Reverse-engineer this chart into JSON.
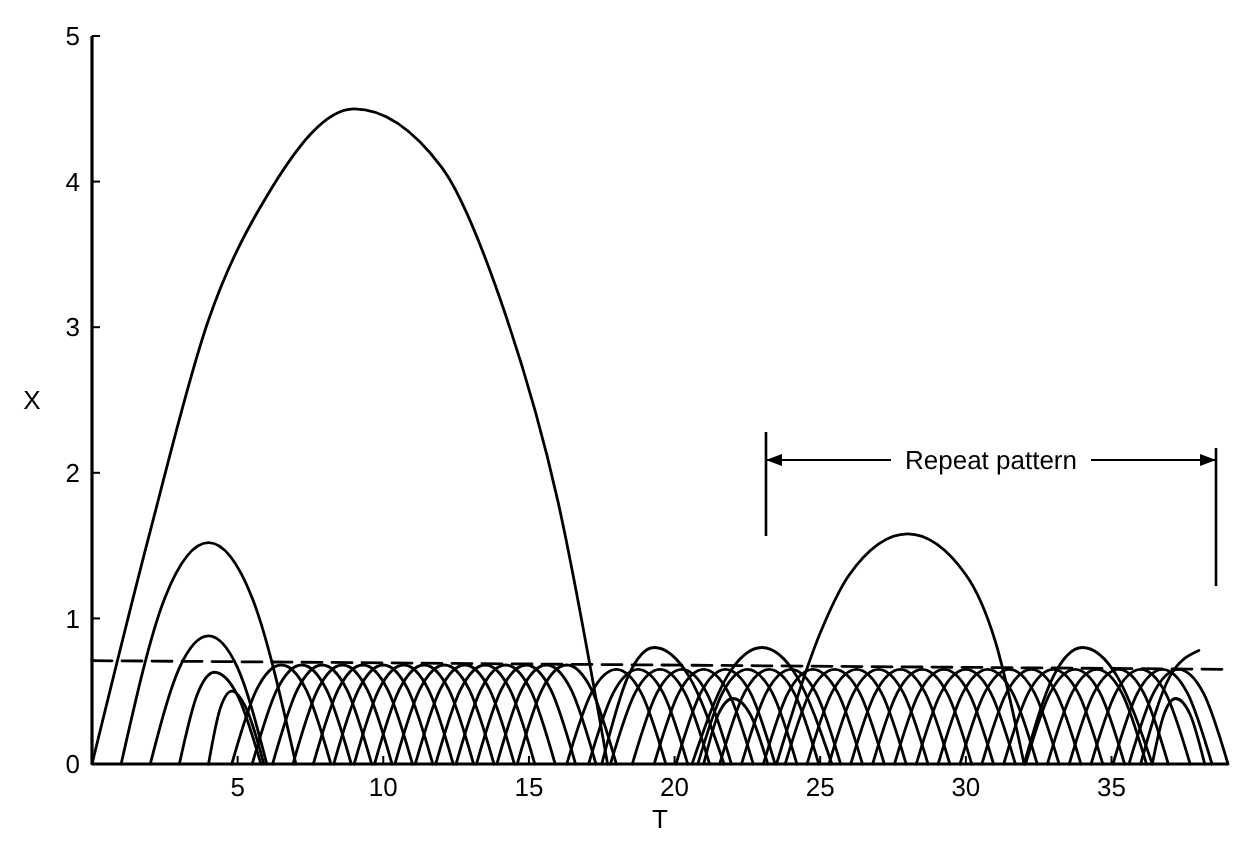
{
  "chart_data": {
    "type": "line",
    "xlabel": "T",
    "ylabel": "X",
    "xlim": [
      0,
      39
    ],
    "ylim": [
      0,
      5
    ],
    "xticks": [
      5,
      10,
      15,
      20,
      25,
      30,
      35
    ],
    "yticks": [
      0,
      1,
      2,
      3,
      4,
      5
    ],
    "grid": false,
    "marker": "none",
    "line_style": "solid",
    "annotations": [
      "Repeat pattern"
    ],
    "series": [
      {
        "color": "#000000",
        "x": [
          0,
          2,
          4,
          6,
          9,
          12,
          14,
          16,
          17.7
        ],
        "values": [
          0,
          1.6,
          3.05,
          3.9,
          4.5,
          4.1,
          3.2,
          1.8,
          0
        ]
      },
      {
        "color": "#000000",
        "x": [
          1,
          2.5,
          4,
          5.5,
          7
        ],
        "values": [
          0,
          1.14,
          1.52,
          1.14,
          0
        ]
      },
      {
        "color": "#000000",
        "x": [
          2,
          3,
          4,
          5,
          6
        ],
        "values": [
          0,
          0.66,
          0.88,
          0.66,
          0
        ]
      },
      {
        "color": "#000000",
        "x": [
          3,
          3.6,
          4.2,
          5,
          5.8
        ],
        "values": [
          0,
          0.47,
          0.63,
          0.47,
          0
        ]
      },
      {
        "color": "#000000",
        "x": [
          4,
          4.4,
          4.8,
          5.3,
          5.9
        ],
        "values": [
          0,
          0.38,
          0.5,
          0.38,
          0
        ]
      },
      {
        "color": "#000000",
        "x": [
          4.8,
          5.65,
          6.5,
          7.35,
          8.2
        ],
        "values": [
          0,
          0.51,
          0.68,
          0.51,
          0
        ]
      },
      {
        "color": "#000000",
        "x": [
          5.5,
          6.35,
          7.2,
          8.05,
          8.9
        ],
        "values": [
          0,
          0.51,
          0.68,
          0.51,
          0
        ]
      },
      {
        "color": "#000000",
        "x": [
          6.2,
          7.05,
          7.9,
          8.75,
          9.6
        ],
        "values": [
          0,
          0.51,
          0.68,
          0.51,
          0
        ]
      },
      {
        "color": "#000000",
        "x": [
          6.9,
          7.75,
          8.6,
          9.45,
          10.3
        ],
        "values": [
          0,
          0.51,
          0.68,
          0.51,
          0
        ]
      },
      {
        "color": "#000000",
        "x": [
          7.6,
          8.45,
          9.3,
          10.15,
          11
        ],
        "values": [
          0,
          0.51,
          0.68,
          0.51,
          0
        ]
      },
      {
        "color": "#000000",
        "x": [
          8.3,
          9.15,
          10,
          10.85,
          11.7
        ],
        "values": [
          0,
          0.51,
          0.68,
          0.51,
          0
        ]
      },
      {
        "color": "#000000",
        "x": [
          9,
          9.85,
          10.7,
          11.55,
          12.4
        ],
        "values": [
          0,
          0.51,
          0.68,
          0.51,
          0
        ]
      },
      {
        "color": "#000000",
        "x": [
          9.7,
          10.55,
          11.4,
          12.25,
          13.1
        ],
        "values": [
          0,
          0.51,
          0.68,
          0.51,
          0
        ]
      },
      {
        "color": "#000000",
        "x": [
          10.4,
          11.25,
          12.1,
          12.95,
          13.8
        ],
        "values": [
          0,
          0.51,
          0.68,
          0.51,
          0
        ]
      },
      {
        "color": "#000000",
        "x": [
          11.1,
          11.95,
          12.8,
          13.65,
          14.5
        ],
        "values": [
          0,
          0.51,
          0.68,
          0.51,
          0
        ]
      },
      {
        "color": "#000000",
        "x": [
          11.8,
          12.65,
          13.5,
          14.35,
          15.2
        ],
        "values": [
          0,
          0.51,
          0.68,
          0.51,
          0
        ]
      },
      {
        "color": "#000000",
        "x": [
          12.5,
          13.35,
          14.2,
          15.05,
          15.9
        ],
        "values": [
          0,
          0.51,
          0.68,
          0.51,
          0
        ]
      },
      {
        "color": "#000000",
        "x": [
          13.2,
          14.05,
          14.9,
          15.75,
          16.6
        ],
        "values": [
          0,
          0.51,
          0.68,
          0.51,
          0
        ]
      },
      {
        "color": "#000000",
        "x": [
          13.9,
          14.75,
          15.6,
          16.45,
          17.3
        ],
        "values": [
          0,
          0.51,
          0.68,
          0.51,
          0
        ]
      },
      {
        "color": "#000000",
        "x": [
          14.6,
          15.45,
          16.3,
          17.15,
          18
        ],
        "values": [
          0,
          0.51,
          0.68,
          0.51,
          0
        ]
      },
      {
        "color": "#000000",
        "x": [
          16.3,
          17.15,
          18,
          18.85,
          19.7
        ],
        "values": [
          0,
          0.49,
          0.65,
          0.49,
          0
        ]
      },
      {
        "color": "#000000",
        "x": [
          17.05,
          17.9,
          18.75,
          19.6,
          20.45
        ],
        "values": [
          0,
          0.49,
          0.65,
          0.49,
          0
        ]
      },
      {
        "color": "#000000",
        "x": [
          17.8,
          18.65,
          19.5,
          20.35,
          21.2
        ],
        "values": [
          0,
          0.49,
          0.65,
          0.49,
          0
        ]
      },
      {
        "color": "#000000",
        "x": [
          18.55,
          19.4,
          20.25,
          21.1,
          21.95
        ],
        "values": [
          0,
          0.49,
          0.65,
          0.49,
          0
        ]
      },
      {
        "color": "#000000",
        "x": [
          19.3,
          20.15,
          21,
          21.85,
          22.7
        ],
        "values": [
          0,
          0.49,
          0.65,
          0.49,
          0
        ]
      },
      {
        "color": "#000000",
        "x": [
          20.05,
          20.9,
          21.75,
          22.6,
          23.45
        ],
        "values": [
          0,
          0.49,
          0.65,
          0.49,
          0
        ]
      },
      {
        "color": "#000000",
        "x": [
          20.8,
          21.65,
          22.5,
          23.35,
          24.2
        ],
        "values": [
          0,
          0.49,
          0.65,
          0.49,
          0
        ]
      },
      {
        "color": "#000000",
        "x": [
          21.55,
          22.4,
          23.25,
          24.1,
          24.95
        ],
        "values": [
          0,
          0.49,
          0.65,
          0.49,
          0
        ]
      },
      {
        "color": "#000000",
        "x": [
          22.3,
          23.15,
          24,
          24.85,
          25.7
        ],
        "values": [
          0,
          0.49,
          0.65,
          0.49,
          0
        ]
      },
      {
        "color": "#000000",
        "x": [
          23.05,
          23.9,
          24.75,
          25.6,
          26.45
        ],
        "values": [
          0,
          0.49,
          0.65,
          0.49,
          0
        ]
      },
      {
        "color": "#000000",
        "x": [
          23.8,
          24.65,
          25.5,
          26.35,
          27.2
        ],
        "values": [
          0,
          0.49,
          0.65,
          0.49,
          0
        ]
      },
      {
        "color": "#000000",
        "x": [
          24.55,
          25.4,
          26.25,
          27.1,
          27.95
        ],
        "values": [
          0,
          0.49,
          0.65,
          0.49,
          0
        ]
      },
      {
        "color": "#000000",
        "x": [
          25.3,
          26.15,
          27,
          27.85,
          28.7
        ],
        "values": [
          0,
          0.49,
          0.65,
          0.49,
          0
        ]
      },
      {
        "color": "#000000",
        "x": [
          26.05,
          26.9,
          27.75,
          28.6,
          29.45
        ],
        "values": [
          0,
          0.49,
          0.65,
          0.49,
          0
        ]
      },
      {
        "color": "#000000",
        "x": [
          26.8,
          27.65,
          28.5,
          29.35,
          30.2
        ],
        "values": [
          0,
          0.49,
          0.65,
          0.49,
          0
        ]
      },
      {
        "color": "#000000",
        "x": [
          27.55,
          28.4,
          29.25,
          30.1,
          30.95
        ],
        "values": [
          0,
          0.49,
          0.65,
          0.49,
          0
        ]
      },
      {
        "color": "#000000",
        "x": [
          28.3,
          29.15,
          30,
          30.85,
          31.7
        ],
        "values": [
          0,
          0.49,
          0.65,
          0.49,
          0
        ]
      },
      {
        "color": "#000000",
        "x": [
          29.05,
          29.9,
          30.75,
          31.6,
          32.45
        ],
        "values": [
          0,
          0.49,
          0.65,
          0.49,
          0
        ]
      },
      {
        "color": "#000000",
        "x": [
          29.8,
          30.65,
          31.5,
          32.35,
          33.2
        ],
        "values": [
          0,
          0.49,
          0.65,
          0.49,
          0
        ]
      },
      {
        "color": "#000000",
        "x": [
          30.55,
          31.4,
          32.25,
          33.1,
          33.95
        ],
        "values": [
          0,
          0.49,
          0.65,
          0.49,
          0
        ]
      },
      {
        "color": "#000000",
        "x": [
          31.3,
          32.15,
          33,
          33.85,
          34.7
        ],
        "values": [
          0,
          0.49,
          0.65,
          0.49,
          0
        ]
      },
      {
        "color": "#000000",
        "x": [
          32.05,
          32.9,
          33.75,
          34.6,
          35.45
        ],
        "values": [
          0,
          0.49,
          0.65,
          0.49,
          0
        ]
      },
      {
        "color": "#000000",
        "x": [
          32.8,
          33.65,
          34.5,
          35.35,
          36.2
        ],
        "values": [
          0,
          0.49,
          0.65,
          0.49,
          0
        ]
      },
      {
        "color": "#000000",
        "x": [
          33.55,
          34.4,
          35.25,
          36.1,
          36.95
        ],
        "values": [
          0,
          0.49,
          0.65,
          0.49,
          0
        ]
      },
      {
        "color": "#000000",
        "x": [
          34.3,
          35.15,
          36,
          36.85,
          37.7
        ],
        "values": [
          0,
          0.49,
          0.65,
          0.49,
          0
        ]
      },
      {
        "color": "#000000",
        "x": [
          35.05,
          35.9,
          36.75,
          37.6,
          38.45
        ],
        "values": [
          0,
          0.49,
          0.65,
          0.49,
          0
        ]
      },
      {
        "color": "#000000",
        "x": [
          35.6,
          36.45,
          37.3,
          38.15,
          39
        ],
        "values": [
          0,
          0.49,
          0.65,
          0.49,
          0
        ]
      },
      {
        "color": "#000000",
        "x": [
          17.5,
          18.4,
          19.3,
          20.5,
          21.7
        ],
        "values": [
          0,
          0.6,
          0.8,
          0.6,
          0
        ]
      },
      {
        "color": "#000000",
        "x": [
          21,
          21.5,
          22,
          22.6,
          23.2
        ],
        "values": [
          0,
          0.34,
          0.45,
          0.34,
          0
        ]
      },
      {
        "color": "#000000",
        "x": [
          20.6,
          21.8,
          23,
          24.2,
          25.4
        ],
        "values": [
          0,
          0.6,
          0.8,
          0.6,
          0
        ]
      },
      {
        "color": "#000000",
        "x": [
          23.5,
          25,
          26,
          28,
          30,
          31,
          32
        ],
        "values": [
          0,
          0.9,
          1.3,
          1.58,
          1.3,
          0.85,
          0
        ]
      },
      {
        "color": "#000000",
        "x": [
          32,
          33,
          34,
          35.2,
          36.4
        ],
        "values": [
          0,
          0.6,
          0.8,
          0.6,
          0
        ]
      },
      {
        "color": "#000000",
        "x": [
          36.4,
          36.8,
          37.2,
          37.7,
          38.2
        ],
        "values": [
          0,
          0.34,
          0.45,
          0.34,
          0
        ]
      },
      {
        "color": "#000000",
        "x": [
          36,
          37,
          38
        ],
        "values": [
          0,
          0.6,
          0.78
        ]
      },
      {
        "color": "#000000",
        "line_style": "dashed",
        "x": [
          0,
          39
        ],
        "values": [
          0.71,
          0.65
        ]
      }
    ]
  }
}
